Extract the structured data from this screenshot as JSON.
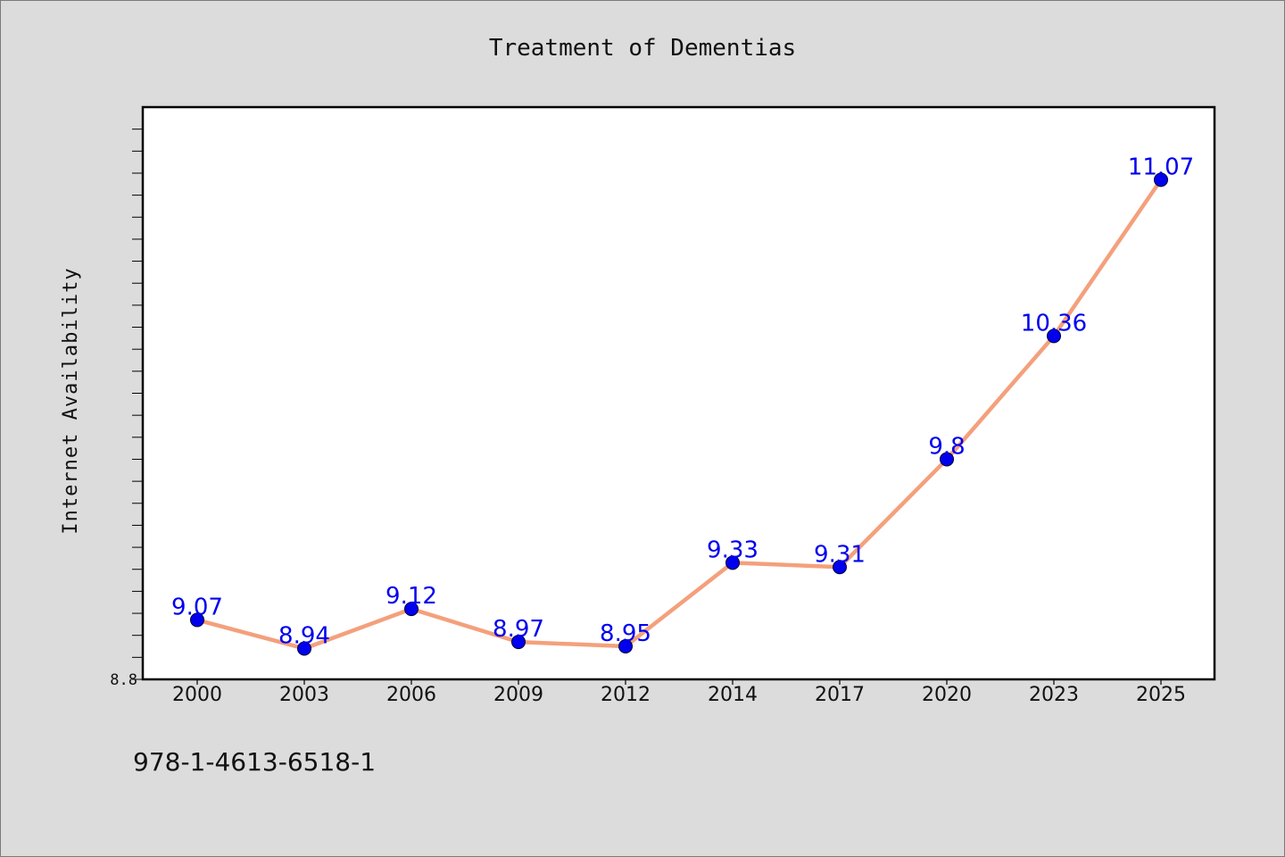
{
  "chart_data": {
    "type": "line",
    "title": "Treatment of Dementias",
    "xlabel": "",
    "ylabel": "Internet Availability",
    "categories": [
      "2000",
      "2003",
      "2006",
      "2009",
      "2012",
      "2014",
      "2017",
      "2020",
      "2023",
      "2025"
    ],
    "series": [
      {
        "values": [
          9.07,
          8.94,
          9.12,
          8.97,
          8.95,
          9.33,
          9.31,
          9.8,
          10.36,
          11.07
        ]
      }
    ],
    "data_labels": [
      "9.07",
      "8.94",
      "9.12",
      "8.97",
      "8.95",
      "9.33",
      "9.31",
      "9.8",
      "10.36",
      "11.07"
    ],
    "ylim": [
      8.8,
      11.4
    ],
    "y_tick_labels": [
      "8.8"
    ],
    "grid": false,
    "legend": "none",
    "colors": {
      "line": "#f4a07c",
      "marker": "#0000ee",
      "marker_edge": "#000033",
      "data_label": "#0000ee",
      "plot_background": "#ffffff",
      "figure_background": "#dcdcdc"
    }
  },
  "footnote": "978-1-4613-6518-1"
}
